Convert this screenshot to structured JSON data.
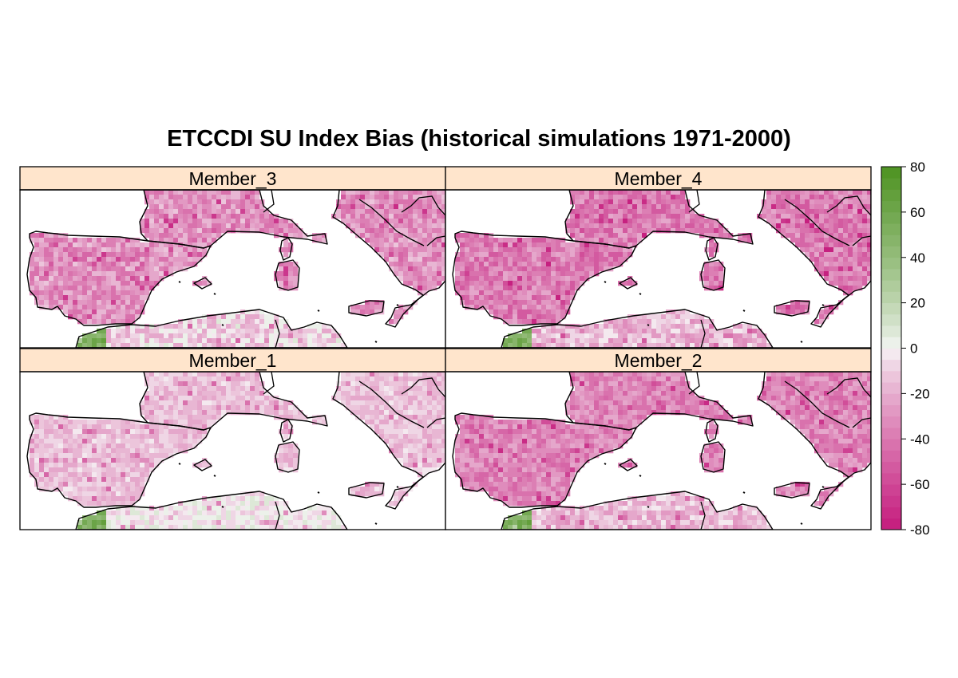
{
  "figure": {
    "title": "ETCCDI SU Index Bias (historical simulations 1971-2000)",
    "panels": [
      {
        "label": "Member_3",
        "mean_bias": -30,
        "variability": 16
      },
      {
        "label": "Member_4",
        "mean_bias": -38,
        "variability": 16
      },
      {
        "label": "Member_1",
        "mean_bias": -14,
        "variability": 10
      },
      {
        "label": "Member_2",
        "mean_bias": -34,
        "variability": 14
      }
    ]
  },
  "colorbar": {
    "min": -80,
    "max": 80,
    "step": 5,
    "ticks": [
      "80",
      "60",
      "40",
      "20",
      "0",
      "-20",
      "-40",
      "-60",
      "-80"
    ],
    "colors": {
      "negative": "#c51b7d",
      "neutral": "#f7f7f7",
      "positive": "#4d9221"
    }
  },
  "colors": {
    "strip_background": "#ffe5cc",
    "sea": "#ffffff",
    "coastline": "#000000"
  }
}
